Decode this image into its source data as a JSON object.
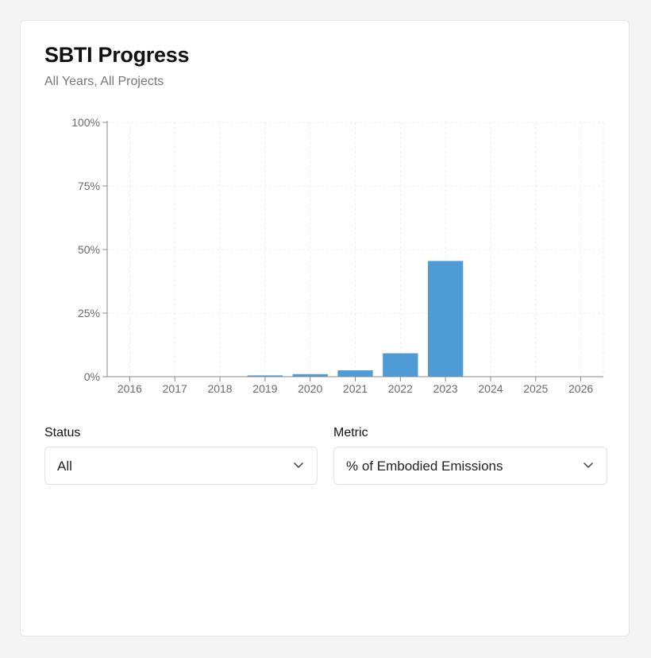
{
  "card": {
    "title": "SBTI Progress",
    "subtitle": "All Years, All Projects"
  },
  "chart_data": {
    "type": "bar",
    "categories": [
      "2016",
      "2017",
      "2018",
      "2019",
      "2020",
      "2021",
      "2022",
      "2023",
      "2024",
      "2025",
      "2026"
    ],
    "values": [
      0,
      0,
      0,
      0.5,
      1,
      2.5,
      9.2,
      45.5,
      0,
      0,
      0
    ],
    "ylim": [
      0,
      100
    ],
    "yticks": [
      "0%",
      "25%",
      "50%",
      "75%",
      "100%"
    ],
    "ytick_values": [
      0,
      25,
      50,
      75,
      100
    ],
    "bar_color": "#4f9bd6",
    "grid": true,
    "title": "",
    "xlabel": "",
    "ylabel": ""
  },
  "filters": {
    "status": {
      "label": "Status",
      "value": "All"
    },
    "metric": {
      "label": "Metric",
      "value": "% of Embodied Emissions"
    }
  },
  "icons": {
    "status_chevron": "chevron-down-icon",
    "metric_chevron": "chevron-down-icon"
  }
}
